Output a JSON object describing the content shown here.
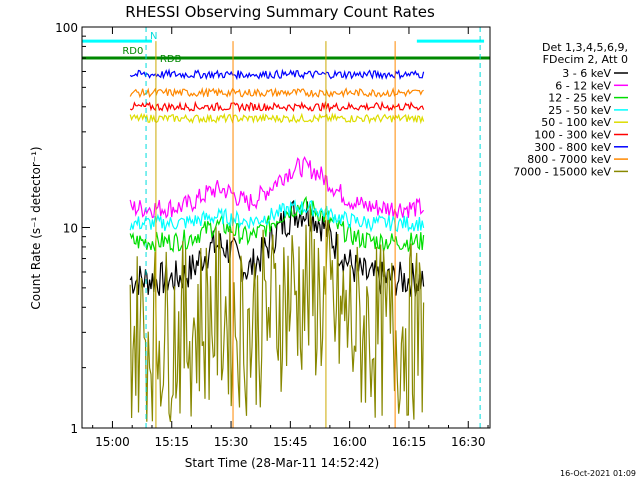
{
  "chart_data": {
    "type": "line",
    "title": "RHESSI Observing Summary Count Rates",
    "xlabel": "Start Time (28-Mar-11 14:52:42)",
    "ylabel": "Count Rate (s⁻¹ detector⁻¹)",
    "y_scale": "log",
    "ylim": [
      1,
      100
    ],
    "xlim_minutes": [
      -7.7,
      95.5
    ],
    "x_ticks": [
      {
        "t": 0,
        "label": "15:00"
      },
      {
        "t": 15,
        "label": "15:15"
      },
      {
        "t": 30,
        "label": "15:30"
      },
      {
        "t": 45,
        "label": "15:45"
      },
      {
        "t": 60,
        "label": "16:00"
      },
      {
        "t": 75,
        "label": "16:15"
      },
      {
        "t": 90,
        "label": "16:30"
      }
    ],
    "y_ticks": [
      {
        "v": 1,
        "label": "1"
      },
      {
        "v": 10,
        "label": "10"
      },
      {
        "v": 100,
        "label": "100"
      }
    ],
    "legend_header": [
      "Det 1,3,4,5,6,9,",
      "FDecim 2, Att 0"
    ],
    "series": [
      {
        "name": "3 - 6 keV",
        "color": "#000000",
        "level": 5.5,
        "bump": 2.2,
        "noise": 0.09
      },
      {
        "name": "6 - 12 keV",
        "color": "#ff00ff",
        "level": 12.5,
        "bump": 1.6,
        "noise": 0.05
      },
      {
        "name": "12 - 25 keV",
        "color": "#00dd00",
        "level": 8.5,
        "bump": 1.5,
        "noise": 0.05
      },
      {
        "name": "25 - 50 keV",
        "color": "#00ffff",
        "level": 10.5,
        "bump": 1.2,
        "noise": 0.04
      },
      {
        "name": "50 - 100 keV",
        "color": "#dddd00",
        "level": 35,
        "bump": 1.0,
        "noise": 0.02
      },
      {
        "name": "100 - 300 keV",
        "color": "#ff0000",
        "level": 40,
        "bump": 1.0,
        "noise": 0.02
      },
      {
        "name": "300 - 800 keV",
        "color": "#0000ff",
        "level": 58,
        "bump": 1.0,
        "noise": 0.02
      },
      {
        "name": "800 - 7000 keV",
        "color": "#ff8800",
        "level": 47,
        "bump": 1.0,
        "noise": 0.02
      },
      {
        "name": "7000 - 15000 keV",
        "color": "#888800",
        "level": 3.0,
        "bump": 1.6,
        "noise": 0.15
      }
    ],
    "annotations": [
      {
        "text": "RD0",
        "color": "#008800"
      },
      {
        "text": "RDB",
        "color": "#008800"
      },
      {
        "text": "N",
        "color": "#00dddd"
      }
    ],
    "attenuator_level": 70,
    "night_level": 85,
    "vertical_markers_minutes": [
      11.0,
      30.5,
      54.0,
      71.5
    ],
    "dashed_markers_minutes": [
      8.5,
      93.0
    ],
    "data_start_minutes": 4.5,
    "data_end_minutes": 79.0,
    "footer": "16-Oct-2021 01:09"
  }
}
